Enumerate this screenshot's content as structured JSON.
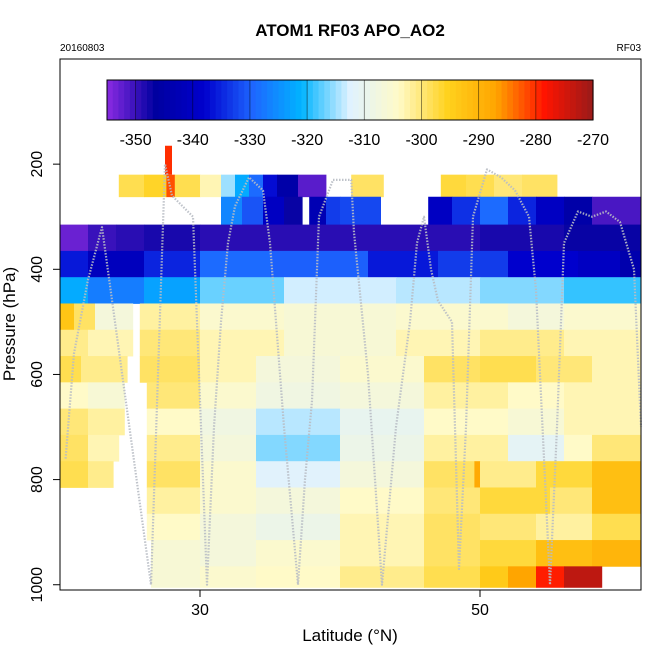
{
  "chart_data": {
    "type": "heatmap",
    "title": "ATOM1 RF03 APO_AO2",
    "date_label": "20160803",
    "flight_label": "RF03",
    "xlabel": "Latitude (°N)",
    "ylabel": "Pressure (hPa)",
    "xlim": [
      20,
      61.5
    ],
    "ylim": [
      1010,
      0
    ],
    "x_ticks": [
      30,
      50
    ],
    "y_ticks": [
      200,
      400,
      600,
      800,
      1000
    ],
    "colorbar": {
      "vmin": -355,
      "vmax": -270,
      "ticks": [
        -350,
        -340,
        -330,
        -320,
        -310,
        -300,
        -290,
        -280,
        -270
      ],
      "colors": [
        "#8a2be2",
        "#0000a0",
        "#0000cd",
        "#1e66ff",
        "#00b4ff",
        "#dff2ff",
        "#fffac8",
        "#ffd21e",
        "#ffa500",
        "#ff1400",
        "#991a1a"
      ]
    },
    "layers": [
      {
        "p_top": 220,
        "p_bot": 262,
        "cells": [
          {
            "x0": 24.2,
            "x1": 26.0,
            "v": -298
          },
          {
            "x0": 26.0,
            "x1": 27.6,
            "v": -296
          },
          {
            "x0": 27.6,
            "x1": 28.2,
            "v": -282
          },
          {
            "x0": 28.2,
            "x1": 30.0,
            "v": -298
          },
          {
            "x0": 30.0,
            "x1": 31.5,
            "v": -303
          },
          {
            "x0": 31.5,
            "x1": 32.5,
            "v": -315
          },
          {
            "x0": 32.5,
            "x1": 33.5,
            "v": -322
          },
          {
            "x0": 33.5,
            "x1": 34.5,
            "v": -329
          },
          {
            "x0": 34.5,
            "x1": 35.5,
            "v": -337
          },
          {
            "x0": 35.5,
            "x1": 37.0,
            "v": -345
          },
          {
            "x0": 37.0,
            "x1": 39.0,
            "v": -352
          },
          {
            "x0": 40.8,
            "x1": 43.1,
            "v": -299
          },
          {
            "x0": 47.2,
            "x1": 49.0,
            "v": -297
          },
          {
            "x0": 49.0,
            "x1": 51.0,
            "v": -298
          },
          {
            "x0": 51.0,
            "x1": 53.0,
            "v": -300
          },
          {
            "x0": 53.0,
            "x1": 55.5,
            "v": -299
          }
        ]
      },
      {
        "p_top": 262,
        "p_bot": 315,
        "cells": [
          {
            "x0": 31.5,
            "x1": 33.0,
            "v": -326
          },
          {
            "x0": 33.0,
            "x1": 34.5,
            "v": -331
          },
          {
            "x0": 34.5,
            "x1": 36.0,
            "v": -340
          },
          {
            "x0": 36.0,
            "x1": 37.3,
            "v": -347
          },
          {
            "x0": 37.8,
            "x1": 39.0,
            "v": -343
          },
          {
            "x0": 39.0,
            "x1": 40.0,
            "v": -333
          },
          {
            "x0": 40.0,
            "x1": 42.9,
            "v": -332
          },
          {
            "x0": 46.3,
            "x1": 48.0,
            "v": -340
          },
          {
            "x0": 48.0,
            "x1": 50.0,
            "v": -334
          },
          {
            "x0": 50.0,
            "x1": 52.0,
            "v": -329
          },
          {
            "x0": 52.0,
            "x1": 54.0,
            "v": -335
          },
          {
            "x0": 54.0,
            "x1": 56.0,
            "v": -340
          },
          {
            "x0": 56.0,
            "x1": 58.0,
            "v": -345
          },
          {
            "x0": 58.0,
            "x1": 61.5,
            "v": -351
          }
        ]
      },
      {
        "p_top": 315,
        "p_bot": 365,
        "cells": [
          {
            "x0": 20.0,
            "x1": 22.0,
            "v": -353
          },
          {
            "x0": 22.0,
            "x1": 24.0,
            "v": -350
          },
          {
            "x0": 24.0,
            "x1": 26.0,
            "v": -349
          },
          {
            "x0": 26.0,
            "x1": 30.0,
            "v": -348
          },
          {
            "x0": 30.0,
            "x1": 40.0,
            "v": -349
          },
          {
            "x0": 40.0,
            "x1": 50.0,
            "v": -349
          },
          {
            "x0": 50.0,
            "x1": 56.0,
            "v": -348
          },
          {
            "x0": 56.0,
            "x1": 61.5,
            "v": -347
          }
        ]
      },
      {
        "p_top": 365,
        "p_bot": 415,
        "cells": [
          {
            "x0": 20.0,
            "x1": 22.0,
            "v": -336
          },
          {
            "x0": 22.0,
            "x1": 26.0,
            "v": -341
          },
          {
            "x0": 26.0,
            "x1": 30.0,
            "v": -335
          },
          {
            "x0": 30.0,
            "x1": 35.0,
            "v": -329
          },
          {
            "x0": 35.0,
            "x1": 42.0,
            "v": -330
          },
          {
            "x0": 42.0,
            "x1": 47.0,
            "v": -336
          },
          {
            "x0": 47.0,
            "x1": 52.0,
            "v": -333
          },
          {
            "x0": 52.0,
            "x1": 57.0,
            "v": -338
          },
          {
            "x0": 57.0,
            "x1": 60.0,
            "v": -340
          },
          {
            "x0": 60.0,
            "x1": 61.5,
            "v": -344
          }
        ]
      },
      {
        "p_top": 415,
        "p_bot": 465,
        "cells": [
          {
            "x0": 20.0,
            "x1": 22.0,
            "v": -322
          },
          {
            "x0": 22.0,
            "x1": 26.0,
            "v": -327
          },
          {
            "x0": 26.0,
            "x1": 30.0,
            "v": -323
          },
          {
            "x0": 30.0,
            "x1": 36.0,
            "v": -317
          },
          {
            "x0": 36.0,
            "x1": 44.0,
            "v": -313
          },
          {
            "x0": 44.0,
            "x1": 50.0,
            "v": -314
          },
          {
            "x0": 50.0,
            "x1": 56.0,
            "v": -316
          },
          {
            "x0": 56.0,
            "x1": 61.5,
            "v": -319
          }
        ]
      },
      {
        "p_top": 465,
        "p_bot": 515,
        "cells": [
          {
            "x0": 20.0,
            "x1": 21.0,
            "v": -293
          },
          {
            "x0": 21.0,
            "x1": 22.5,
            "v": -299
          },
          {
            "x0": 22.5,
            "x1": 25.2,
            "v": -307
          },
          {
            "x0": 25.7,
            "x1": 30.0,
            "v": -302
          },
          {
            "x0": 30.0,
            "x1": 36.0,
            "v": -305
          },
          {
            "x0": 36.0,
            "x1": 44.0,
            "v": -306
          },
          {
            "x0": 44.0,
            "x1": 52.0,
            "v": -305
          },
          {
            "x0": 52.0,
            "x1": 56.0,
            "v": -307
          },
          {
            "x0": 56.0,
            "x1": 61.5,
            "v": -305
          }
        ]
      },
      {
        "p_top": 515,
        "p_bot": 565,
        "cells": [
          {
            "x0": 20.0,
            "x1": 22.0,
            "v": -301
          },
          {
            "x0": 22.0,
            "x1": 25.2,
            "v": -303
          },
          {
            "x0": 25.7,
            "x1": 30.0,
            "v": -300
          },
          {
            "x0": 30.0,
            "x1": 36.0,
            "v": -303
          },
          {
            "x0": 36.0,
            "x1": 44.0,
            "v": -306
          },
          {
            "x0": 44.0,
            "x1": 50.0,
            "v": -303
          },
          {
            "x0": 50.0,
            "x1": 56.0,
            "v": -301
          },
          {
            "x0": 56.0,
            "x1": 61.5,
            "v": -303
          }
        ]
      },
      {
        "p_top": 565,
        "p_bot": 615,
        "cells": [
          {
            "x0": 20.0,
            "x1": 21.5,
            "v": -298
          },
          {
            "x0": 21.5,
            "x1": 24.8,
            "v": -301
          },
          {
            "x0": 25.7,
            "x1": 30.0,
            "v": -299
          },
          {
            "x0": 30.0,
            "x1": 34.0,
            "v": -303
          },
          {
            "x0": 34.0,
            "x1": 40.0,
            "v": -307
          },
          {
            "x0": 40.0,
            "x1": 46.0,
            "v": -305
          },
          {
            "x0": 46.0,
            "x1": 50.0,
            "v": -299
          },
          {
            "x0": 50.0,
            "x1": 54.0,
            "v": -298
          },
          {
            "x0": 54.0,
            "x1": 58.0,
            "v": -300
          },
          {
            "x0": 58.0,
            "x1": 61.5,
            "v": -303
          }
        ]
      },
      {
        "p_top": 615,
        "p_bot": 665,
        "cells": [
          {
            "x0": 20.0,
            "x1": 22.0,
            "v": -304
          },
          {
            "x0": 22.0,
            "x1": 24.6,
            "v": -306
          },
          {
            "x0": 26.2,
            "x1": 30.0,
            "v": -300
          },
          {
            "x0": 30.0,
            "x1": 34.0,
            "v": -305
          },
          {
            "x0": 34.0,
            "x1": 40.0,
            "v": -308
          },
          {
            "x0": 40.0,
            "x1": 46.0,
            "v": -307
          },
          {
            "x0": 46.0,
            "x1": 52.0,
            "v": -302
          },
          {
            "x0": 52.0,
            "x1": 56.0,
            "v": -304
          },
          {
            "x0": 56.0,
            "x1": 61.5,
            "v": -303
          }
        ]
      },
      {
        "p_top": 665,
        "p_bot": 715,
        "cells": [
          {
            "x0": 20.0,
            "x1": 22.0,
            "v": -300
          },
          {
            "x0": 22.0,
            "x1": 24.6,
            "v": -302
          },
          {
            "x0": 26.2,
            "x1": 30.0,
            "v": -304
          },
          {
            "x0": 30.0,
            "x1": 34.0,
            "v": -308
          },
          {
            "x0": 34.0,
            "x1": 40.0,
            "v": -314
          },
          {
            "x0": 40.0,
            "x1": 46.0,
            "v": -310
          },
          {
            "x0": 46.0,
            "x1": 52.0,
            "v": -304
          },
          {
            "x0": 52.0,
            "x1": 56.0,
            "v": -306
          },
          {
            "x0": 56.0,
            "x1": 61.5,
            "v": -303
          }
        ]
      },
      {
        "p_top": 715,
        "p_bot": 765,
        "cells": [
          {
            "x0": 20.0,
            "x1": 22.0,
            "v": -299
          },
          {
            "x0": 22.0,
            "x1": 24.2,
            "v": -303
          },
          {
            "x0": 26.2,
            "x1": 30.0,
            "v": -301
          },
          {
            "x0": 30.0,
            "x1": 34.0,
            "v": -307
          },
          {
            "x0": 34.0,
            "x1": 40.0,
            "v": -316
          },
          {
            "x0": 40.0,
            "x1": 46.0,
            "v": -309
          },
          {
            "x0": 46.0,
            "x1": 52.0,
            "v": -302
          },
          {
            "x0": 52.0,
            "x1": 56.0,
            "v": -311
          },
          {
            "x0": 56.0,
            "x1": 58.0,
            "v": -304
          },
          {
            "x0": 58.0,
            "x1": 61.5,
            "v": -300
          }
        ]
      },
      {
        "p_top": 765,
        "p_bot": 815,
        "cells": [
          {
            "x0": 20.0,
            "x1": 22.0,
            "v": -298
          },
          {
            "x0": 22.0,
            "x1": 23.8,
            "v": -301
          },
          {
            "x0": 26.2,
            "x1": 30.0,
            "v": -299
          },
          {
            "x0": 30.0,
            "x1": 34.0,
            "v": -305
          },
          {
            "x0": 34.0,
            "x1": 40.0,
            "v": -312
          },
          {
            "x0": 40.0,
            "x1": 46.0,
            "v": -307
          },
          {
            "x0": 46.0,
            "x1": 49.6,
            "v": -299
          },
          {
            "x0": 49.6,
            "x1": 50.0,
            "v": -288
          },
          {
            "x0": 50.0,
            "x1": 54.0,
            "v": -301
          },
          {
            "x0": 54.0,
            "x1": 58.0,
            "v": -297
          },
          {
            "x0": 58.0,
            "x1": 61.5,
            "v": -292
          }
        ]
      },
      {
        "p_top": 815,
        "p_bot": 865,
        "cells": [
          {
            "x0": 26.2,
            "x1": 30.0,
            "v": -302
          },
          {
            "x0": 30.0,
            "x1": 34.0,
            "v": -305
          },
          {
            "x0": 34.0,
            "x1": 40.0,
            "v": -307
          },
          {
            "x0": 40.0,
            "x1": 46.0,
            "v": -304
          },
          {
            "x0": 46.0,
            "x1": 50.0,
            "v": -300
          },
          {
            "x0": 50.0,
            "x1": 55.0,
            "v": -297
          },
          {
            "x0": 55.0,
            "x1": 58.0,
            "v": -300
          },
          {
            "x0": 58.0,
            "x1": 61.5,
            "v": -292
          }
        ]
      },
      {
        "p_top": 865,
        "p_bot": 915,
        "cells": [
          {
            "x0": 26.2,
            "x1": 30.0,
            "v": -304
          },
          {
            "x0": 30.0,
            "x1": 34.0,
            "v": -307
          },
          {
            "x0": 34.0,
            "x1": 40.0,
            "v": -309
          },
          {
            "x0": 40.0,
            "x1": 46.0,
            "v": -303
          },
          {
            "x0": 46.0,
            "x1": 50.0,
            "v": -299
          },
          {
            "x0": 50.0,
            "x1": 54.0,
            "v": -300
          },
          {
            "x0": 54.0,
            "x1": 58.0,
            "v": -302
          },
          {
            "x0": 58.0,
            "x1": 61.5,
            "v": -298
          }
        ]
      },
      {
        "p_top": 915,
        "p_bot": 965,
        "cells": [
          {
            "x0": 26.5,
            "x1": 30.0,
            "v": -306
          },
          {
            "x0": 30.0,
            "x1": 34.0,
            "v": -307
          },
          {
            "x0": 34.0,
            "x1": 40.0,
            "v": -305
          },
          {
            "x0": 40.0,
            "x1": 46.0,
            "v": -303
          },
          {
            "x0": 46.0,
            "x1": 50.0,
            "v": -299
          },
          {
            "x0": 50.0,
            "x1": 54.0,
            "v": -297
          },
          {
            "x0": 54.0,
            "x1": 58.0,
            "v": -292
          },
          {
            "x0": 58.0,
            "x1": 61.5,
            "v": -290
          }
        ]
      },
      {
        "p_top": 965,
        "p_bot": 1005,
        "cells": [
          {
            "x0": 26.5,
            "x1": 30.0,
            "v": -306
          },
          {
            "x0": 30.0,
            "x1": 34.0,
            "v": -305
          },
          {
            "x0": 34.0,
            "x1": 40.0,
            "v": -304
          },
          {
            "x0": 40.0,
            "x1": 46.0,
            "v": -301
          },
          {
            "x0": 46.0,
            "x1": 50.0,
            "v": -298
          },
          {
            "x0": 50.0,
            "x1": 52.0,
            "v": -294
          },
          {
            "x0": 52.0,
            "x1": 54.0,
            "v": -287
          },
          {
            "x0": 54.0,
            "x1": 56.0,
            "v": -279
          },
          {
            "x0": 56.0,
            "x1": 58.7,
            "v": -273
          }
        ]
      }
    ],
    "spikes": [
      {
        "x0": 27.5,
        "x1": 28.0,
        "p_top": 165,
        "p_bot": 220,
        "v": -280
      }
    ],
    "flight_track": [
      [
        20.4,
        760
      ],
      [
        21.0,
        560
      ],
      [
        22.0,
        420
      ],
      [
        23.0,
        320
      ],
      [
        26.5,
        1000
      ],
      [
        27.0,
        600
      ],
      [
        27.5,
        200
      ],
      [
        28.0,
        260
      ],
      [
        29.5,
        300
      ],
      [
        30.5,
        1000
      ],
      [
        31.0,
        700
      ],
      [
        31.5,
        500
      ],
      [
        32.0,
        350
      ],
      [
        32.5,
        280
      ],
      [
        33.5,
        225
      ],
      [
        34.5,
        250
      ],
      [
        35.0,
        350
      ],
      [
        36.0,
        700
      ],
      [
        37.0,
        1000
      ],
      [
        37.5,
        800
      ],
      [
        38.0,
        650
      ],
      [
        38.5,
        300
      ],
      [
        39.5,
        230
      ],
      [
        40.8,
        230
      ],
      [
        41.0,
        330
      ],
      [
        42.0,
        600
      ],
      [
        43.0,
        1000
      ],
      [
        44.0,
        700
      ],
      [
        45.0,
        500
      ],
      [
        45.5,
        350
      ],
      [
        46.0,
        300
      ],
      [
        46.5,
        400
      ],
      [
        47.0,
        460
      ],
      [
        48.0,
        500
      ],
      [
        48.5,
        970
      ],
      [
        49.0,
        700
      ],
      [
        49.5,
        300
      ],
      [
        50.5,
        210
      ],
      [
        51.5,
        225
      ],
      [
        52.5,
        250
      ],
      [
        53.5,
        300
      ],
      [
        54.0,
        440
      ],
      [
        55.0,
        1000
      ],
      [
        55.5,
        700
      ],
      [
        56.0,
        350
      ],
      [
        57.0,
        290
      ],
      [
        58.0,
        300
      ],
      [
        59.0,
        290
      ],
      [
        60.0,
        310
      ],
      [
        61.0,
        400
      ],
      [
        61.5,
        700
      ]
    ]
  }
}
